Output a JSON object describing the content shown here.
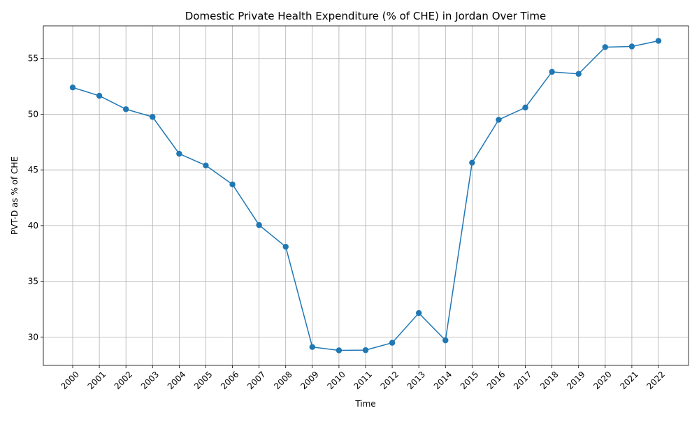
{
  "chart_data": {
    "type": "line",
    "title": "Domestic Private Health Expenditure (% of CHE) in Jordan Over Time",
    "xlabel": "Time",
    "ylabel": "PVT-D as % of CHE",
    "categories": [
      "2000",
      "2001",
      "2002",
      "2003",
      "2004",
      "2005",
      "2006",
      "2007",
      "2008",
      "2009",
      "2010",
      "2011",
      "2012",
      "2013",
      "2014",
      "2015",
      "2016",
      "2017",
      "2018",
      "2019",
      "2020",
      "2021",
      "2022"
    ],
    "series": [
      {
        "values": [
          52.4,
          51.65,
          50.45,
          49.75,
          46.45,
          45.4,
          43.7,
          40.05,
          38.1,
          29.1,
          28.8,
          28.82,
          29.48,
          32.15,
          29.7,
          45.65,
          49.5,
          50.6,
          53.8,
          53.62,
          56.02,
          56.08,
          56.58
        ],
        "color": "#1f77b4",
        "marker": "circle"
      }
    ],
    "ylim": [
      27.45,
      57.93
    ],
    "yticks": [
      30,
      35,
      40,
      45,
      50,
      55
    ],
    "grid": true,
    "legend": "none"
  }
}
